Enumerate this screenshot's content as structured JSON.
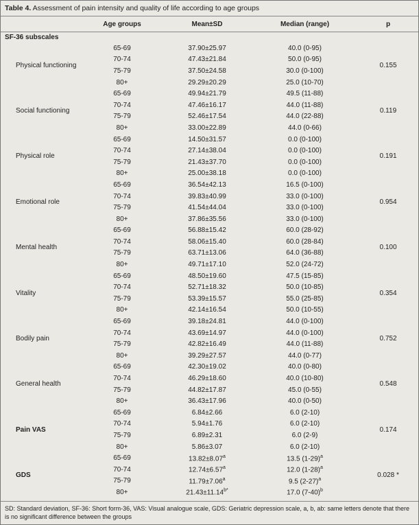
{
  "table": {
    "label": "Table 4.",
    "caption": "Assessment of pain intensity and quality of life according to age groups",
    "header": [
      "",
      "Age groups",
      "Mean±SD",
      "Median (range)",
      "p"
    ],
    "section": "SF-36 subscales",
    "groups": [
      {
        "name": "Physical functioning",
        "p": "0.155",
        "rows": [
          {
            "age": "65-69",
            "mean": "37.90±25.97",
            "median": "40.0 (0-95)"
          },
          {
            "age": "70-74",
            "mean": "47.43±21.84",
            "median": "50.0 (0-95)"
          },
          {
            "age": "75-79",
            "mean": "37.50±24.58",
            "median": "30.0 (0-100)"
          },
          {
            "age": "80+",
            "mean": "29.29±20.29",
            "median": "25.0 (10-70)"
          }
        ]
      },
      {
        "name": "Social functioning",
        "p": "0.119",
        "rows": [
          {
            "age": "65-69",
            "mean": "49.94±21.79",
            "median": "49.5 (11-88)"
          },
          {
            "age": "70-74",
            "mean": "47.46±16.17",
            "median": "44.0 (11-88)"
          },
          {
            "age": "75-79",
            "mean": "52.46±17.54",
            "median": "44.0 (22-88)"
          },
          {
            "age": "80+",
            "mean": "33.00±22.89",
            "median": "44.0 (0-66)"
          }
        ]
      },
      {
        "name": "Physical role",
        "p": "0.191",
        "rows": [
          {
            "age": "65-69",
            "mean": "14.50±31.57",
            "median": "0.0 (0-100)"
          },
          {
            "age": "70-74",
            "mean": "27.14±38.04",
            "median": "0.0 (0-100)"
          },
          {
            "age": "75-79",
            "mean": "21.43±37.70",
            "median": "0.0 (0-100)"
          },
          {
            "age": "80+",
            "mean": "25.00±38.18",
            "median": "0.0 (0-100)"
          }
        ]
      },
      {
        "name": "Emotional role",
        "p": "0.954",
        "rows": [
          {
            "age": "65-69",
            "mean": "36.54±42.13",
            "median": "16.5 (0-100)"
          },
          {
            "age": "70-74",
            "mean": "39.83±40.99",
            "median": "33.0 (0-100)"
          },
          {
            "age": "75-79",
            "mean": "41.54±44.04",
            "median": "33.0 (0-100)"
          },
          {
            "age": "80+",
            "mean": "37.86±35.56",
            "median": "33.0 (0-100)"
          }
        ]
      },
      {
        "name": "Mental health",
        "p": "0.100",
        "rows": [
          {
            "age": "65-69",
            "mean": "56.88±15.42",
            "median": "60.0 (28-92)"
          },
          {
            "age": "70-74",
            "mean": "58.06±15.40",
            "median": "60.0 (28-84)"
          },
          {
            "age": "75-79",
            "mean": "63.71±13.06",
            "median": "64.0 (36-88)"
          },
          {
            "age": "80+",
            "mean": "49.71±17.10",
            "median": "52.0 (24-72)"
          }
        ]
      },
      {
        "name": "Vitality",
        "p": "0.354",
        "rows": [
          {
            "age": "65-69",
            "mean": "48.50±19.60",
            "median": "47.5 (15-85)"
          },
          {
            "age": "70-74",
            "mean": "52.71±18.32",
            "median": "50.0 (10-85)"
          },
          {
            "age": "75-79",
            "mean": "53.39±15.57",
            "median": "55.0 (25-85)"
          },
          {
            "age": "80+",
            "mean": "42.14±16.54",
            "median": "50.0 (10-55)"
          }
        ]
      },
      {
        "name": "Bodily pain",
        "p": "0.752",
        "rows": [
          {
            "age": "65-69",
            "mean": "39.18±24.81",
            "median": "44.0 (0-100)"
          },
          {
            "age": "70-74",
            "mean": "43.69±14.97",
            "median": "44.0 (0-100)"
          },
          {
            "age": "75-79",
            "mean": "42.82±16.49",
            "median": "44.0 (11-88)"
          },
          {
            "age": "80+",
            "mean": "39.29±27.57",
            "median": "44.0 (0-77)"
          }
        ]
      },
      {
        "name": "General health",
        "p": "0.548",
        "rows": [
          {
            "age": "65-69",
            "mean": "42.30±19.02",
            "median": "40.0 (0-80)"
          },
          {
            "age": "70-74",
            "mean": "46.29±18.60",
            "median": "40.0 (10-80)"
          },
          {
            "age": "75-79",
            "mean": "44.82±17.87",
            "median": "45.0 (0-55)"
          },
          {
            "age": "80+",
            "mean": "36.43±17.96",
            "median": "40.0 (0-50)"
          }
        ]
      },
      {
        "name": "Pain VAS",
        "bold": true,
        "p": "0.174",
        "rows": [
          {
            "age": "65-69",
            "mean": "6.84±2.66",
            "median": "6.0 (2-10)"
          },
          {
            "age": "70-74",
            "mean": "5.94±1.76",
            "median": "6.0 (2-10)"
          },
          {
            "age": "75-79",
            "mean": "6.89±2.31",
            "median": "6.0 (2-9)"
          },
          {
            "age": "80+",
            "mean": "5.86±3.07",
            "median": "6.0 (2-10)"
          }
        ]
      },
      {
        "name": "GDS",
        "bold": true,
        "p": "0.028 *",
        "rows": [
          {
            "age": "65-69",
            "mean": "13.82±8.07",
            "mean_note": "a",
            "median": "13.5 (1-29)",
            "median_note": "a"
          },
          {
            "age": "70-74",
            "mean": "12.74±6.57",
            "mean_note": "a",
            "median": "12.0 (1-28)",
            "median_note": "a"
          },
          {
            "age": "75-79",
            "mean": "11.79±7.06",
            "mean_note": "a",
            "median": "9.5 (2-27)",
            "median_note": "a"
          },
          {
            "age": "80+",
            "mean": "21.43±11.14",
            "mean_note": "b*",
            "median": "17.0 (7-40)",
            "median_note": "b"
          }
        ]
      }
    ],
    "footnote": "SD: Standard deviation, SF-36: Short form-36, VAS: Visual analogue scale, GDS: Geriatric depression scale, a, b, ab: same letters denote that there is no significant difference between the groups"
  }
}
